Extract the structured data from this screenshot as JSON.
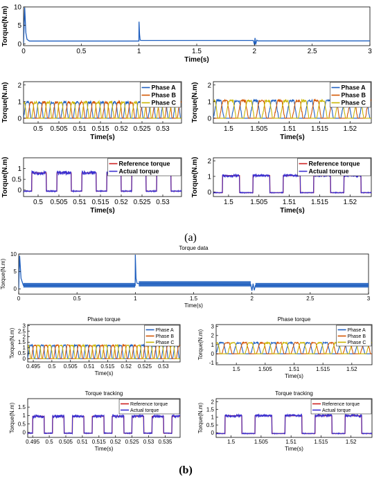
{
  "panel_labels": {
    "a": "(a)",
    "b": "(b)"
  },
  "chart_data": [
    {
      "id": "a_torque",
      "type": "line",
      "title": "",
      "xlabel": "Time(s)",
      "ylabel": "Torque(N.m)",
      "xlim": [
        0,
        3
      ],
      "ylim": [
        -0.5,
        10
      ],
      "xticks": [
        0,
        0.5,
        1,
        1.5,
        2,
        2.5,
        3
      ],
      "xtick_labels": [
        "0",
        "0.5",
        "1",
        "1.5",
        "2",
        "2.5",
        "3"
      ],
      "yticks": [
        0,
        5,
        10
      ],
      "ytick_labels": [
        "0",
        "5",
        "10"
      ],
      "grid": false,
      "series": [
        {
          "color": "#1f5fbf",
          "x": [
            0,
            0.01,
            0.02,
            0.03,
            0.05,
            0.999,
            1.0,
            1.005,
            1.01,
            1.02,
            1.05,
            1.99,
            2.0,
            2.005,
            2.01,
            2.02,
            2.03,
            3.0
          ],
          "y": [
            0,
            9.8,
            3.0,
            1.2,
            0.75,
            0.75,
            6.0,
            2.5,
            1.0,
            0.9,
            0.9,
            0.9,
            -0.2,
            1.6,
            -0.2,
            1.0,
            0.8,
            0.8
          ]
        }
      ]
    },
    {
      "id": "a_phase_left",
      "type": "line",
      "xlabel": "Time(s)",
      "ylabel": "Torque(N.m)",
      "xlim": [
        0.4965,
        0.5345
      ],
      "ylim": [
        -0.3,
        2.2
      ],
      "xticks": [
        0.5,
        0.505,
        0.51,
        0.515,
        0.52,
        0.525,
        0.53
      ],
      "xtick_labels": [
        "0.5",
        "0.505",
        "0.51",
        "0.515",
        "0.52",
        "0.525",
        "0.53"
      ],
      "yticks": [
        0,
        1,
        2
      ],
      "ytick_labels": [
        "0",
        "1",
        "2"
      ],
      "grid": false,
      "legend": "top-right",
      "wave": {
        "start": 0.4965,
        "end": 0.5345,
        "period": 0.003,
        "high": 0.95,
        "low": 0.0,
        "rise": 0.18,
        "flat": 0.25,
        "fall": 0.15
      },
      "series": [
        {
          "name": "Phase A",
          "color": "#1f5fbf",
          "phase": 0.0
        },
        {
          "name": "Phase B",
          "color": "#d35400",
          "phase": 0.001
        },
        {
          "name": "Phase C",
          "color": "#c9b400",
          "phase": 0.002
        }
      ]
    },
    {
      "id": "a_phase_right",
      "type": "line",
      "xlabel": "Time(s)",
      "ylabel": "Torque(N.m)",
      "xlim": [
        1.4975,
        1.5235
      ],
      "ylim": [
        -0.3,
        2.2
      ],
      "xticks": [
        1.5,
        1.505,
        1.51,
        1.515,
        1.52
      ],
      "xtick_labels": [
        "1.5",
        "1.505",
        "1.51",
        "1.515",
        "1.52"
      ],
      "yticks": [
        0,
        1,
        2
      ],
      "ytick_labels": [
        "0",
        "1",
        "2"
      ],
      "grid": false,
      "legend": "top-right",
      "wave": {
        "start": 1.4975,
        "end": 1.5235,
        "period": 0.003,
        "high": 1.05,
        "low": 0.0,
        "rise": 0.18,
        "flat": 0.25,
        "fall": 0.15
      },
      "series": [
        {
          "name": "Phase A",
          "color": "#1f5fbf",
          "phase": 0.0
        },
        {
          "name": "Phase B",
          "color": "#d35400",
          "phase": 0.001
        },
        {
          "name": "Phase C",
          "color": "#c9b400",
          "phase": 0.002
        }
      ]
    },
    {
      "id": "a_track_left",
      "type": "line",
      "xlabel": "Time(s)",
      "ylabel": "Torque(N.m)",
      "xlim": [
        0.4965,
        0.5345
      ],
      "ylim": [
        -0.3,
        1.5
      ],
      "xticks": [
        0.5,
        0.505,
        0.51,
        0.515,
        0.52,
        0.525,
        0.53
      ],
      "xtick_labels": [
        "0.5",
        "0.505",
        "0.51",
        "0.515",
        "0.52",
        "0.525",
        "0.53"
      ],
      "yticks": [
        0,
        0.5,
        1
      ],
      "ytick_labels": [
        "0",
        "0.5",
        "1"
      ],
      "grid": false,
      "legend": "top-right",
      "pulse": {
        "start": 0.4965,
        "end": 0.5345,
        "period": 0.006,
        "offset": 0.002,
        "width": 0.0035,
        "high": 0.8,
        "low": -0.05
      },
      "series": [
        {
          "name": "Reference torque",
          "color": "#cc1f1f"
        },
        {
          "name": "Actual torque",
          "color": "#3a2fd0"
        }
      ]
    },
    {
      "id": "a_track_right",
      "type": "line",
      "xlabel": "Time(s)",
      "ylabel": "Torque(N.m)",
      "xlim": [
        1.4975,
        1.5235
      ],
      "ylim": [
        -0.3,
        2.2
      ],
      "xticks": [
        1.5,
        1.505,
        1.51,
        1.515,
        1.52
      ],
      "xtick_labels": [
        "1.5",
        "1.505",
        "1.51",
        "1.515",
        "1.52"
      ],
      "yticks": [
        0,
        1,
        2
      ],
      "ytick_labels": [
        "0",
        "1",
        "2"
      ],
      "grid": false,
      "legend": "top-right",
      "pulse": {
        "start": 1.4975,
        "end": 1.5235,
        "period": 0.005,
        "offset": 0.0015,
        "width": 0.0028,
        "high": 1.05,
        "low": -0.05
      },
      "series": [
        {
          "name": "Reference torque",
          "color": "#cc1f1f"
        },
        {
          "name": "Actual torque",
          "color": "#3a2fd0"
        }
      ]
    },
    {
      "id": "b_torque",
      "type": "line",
      "title": "Torque data",
      "xlabel": "Time(s)",
      "ylabel": "Torque(N.m)",
      "xlim": [
        0,
        3
      ],
      "ylim": [
        -1.5,
        10
      ],
      "xticks": [
        0,
        0.5,
        1,
        1.5,
        2,
        2.5,
        3
      ],
      "xtick_labels": [
        "0",
        "0.5",
        "1",
        "1.5",
        "2",
        "2.5",
        "3"
      ],
      "yticks": [
        0,
        5,
        10
      ],
      "ytick_labels": [
        "0",
        "5",
        "10"
      ],
      "grid": false,
      "series": [
        {
          "color": "#1f5fbf",
          "x": [
            0,
            0.008,
            0.02,
            0.04,
            0.999,
            1.0,
            1.006,
            1.015,
            1.03,
            1.99,
            2.0,
            2.01,
            2.02,
            2.03,
            3.0
          ],
          "y": [
            0,
            9.5,
            3.0,
            1.0,
            1.0,
            9.8,
            3.0,
            1.6,
            1.5,
            1.3,
            -0.5,
            1.5,
            -0.4,
            1.0,
            1.0
          ]
        }
      ],
      "band": [
        {
          "x": [
            0.04,
            0.999
          ],
          "y_low": 0.4,
          "y_high": 1.7
        },
        {
          "x": [
            1.03,
            1.99
          ],
          "y_low": 0.7,
          "y_high": 2.2
        },
        {
          "x": [
            2.03,
            3.0
          ],
          "y_low": 0.4,
          "y_high": 1.7
        }
      ]
    },
    {
      "id": "b_phase_left",
      "type": "line",
      "title": "Phase torque",
      "xlabel": "Time(s)",
      "ylabel": "Torque(N.m)",
      "xlim": [
        0.4935,
        0.5345
      ],
      "ylim": [
        -0.3,
        3.1
      ],
      "xticks": [
        0.495,
        0.5,
        0.505,
        0.51,
        0.515,
        0.52,
        0.525,
        0.53
      ],
      "xtick_labels": [
        "0.495",
        "0.5",
        "0.505",
        "0.51",
        "0.515",
        "0.52",
        "0.525",
        "0.53"
      ],
      "yticks": [
        0,
        0.5,
        1,
        1.5,
        2,
        2.5,
        3
      ],
      "ytick_labels": [
        "0",
        "0.5",
        "1",
        "1.5",
        "2",
        "2.5",
        "3"
      ],
      "grid": false,
      "legend": "top-right",
      "wave": {
        "start": 0.4935,
        "end": 0.5345,
        "period": 0.003,
        "high": 1.2,
        "low": 0.0,
        "rise": 0.18,
        "flat": 0.25,
        "fall": 0.15
      },
      "series": [
        {
          "name": "Phase A",
          "color": "#1f5fbf",
          "phase": 0.0
        },
        {
          "name": "Phase B",
          "color": "#d35400",
          "phase": 0.001
        },
        {
          "name": "Phase C",
          "color": "#c9b400",
          "phase": 0.002
        }
      ]
    },
    {
      "id": "b_phase_right",
      "type": "line",
      "title": "Phase torque",
      "xlabel": "Time(s)",
      "ylabel": "Torque(N.m)",
      "xlim": [
        1.4965,
        1.5235
      ],
      "ylim": [
        -1.2,
        3.2
      ],
      "xticks": [
        1.5,
        1.505,
        1.51,
        1.515,
        1.52
      ],
      "xtick_labels": [
        "1.5",
        "1.505",
        "1.51",
        "1.515",
        "1.52"
      ],
      "yticks": [
        -1,
        0,
        1,
        2,
        3
      ],
      "ytick_labels": [
        "-1",
        "0",
        "1",
        "2",
        "3"
      ],
      "grid": false,
      "legend": "top-right",
      "wave": {
        "start": 1.4965,
        "end": 1.5235,
        "period": 0.003,
        "high": 1.2,
        "low": 0.0,
        "rise": 0.18,
        "flat": 0.25,
        "fall": 0.15
      },
      "series": [
        {
          "name": "Phase A",
          "color": "#1f5fbf",
          "phase": 0.0
        },
        {
          "name": "Phase B",
          "color": "#d35400",
          "phase": 0.001
        },
        {
          "name": "Phase C",
          "color": "#c9b400",
          "phase": 0.002
        }
      ]
    },
    {
      "id": "b_track_left",
      "type": "line",
      "title": "Torque tracking",
      "xlabel": "Time(s)",
      "ylabel": "Torque(N.m)",
      "xlim": [
        0.4935,
        0.5395
      ],
      "ylim": [
        -0.3,
        2.0
      ],
      "xticks": [
        0.495,
        0.5,
        0.505,
        0.51,
        0.515,
        0.52,
        0.525,
        0.53,
        0.535
      ],
      "xtick_labels": [
        "0.495",
        "0.5",
        "0.505",
        "0.51",
        "0.515",
        "0.52",
        "0.525",
        "0.53",
        "0.535"
      ],
      "yticks": [
        0,
        0.5,
        1,
        1.5
      ],
      "ytick_labels": [
        "0",
        "0.5",
        "1",
        "1.5"
      ],
      "grid": false,
      "legend": "top-right",
      "pulse": {
        "start": 0.4935,
        "end": 0.5395,
        "period": 0.006,
        "offset": 0.0015,
        "width": 0.0035,
        "high": 0.95,
        "low": -0.05
      },
      "series": [
        {
          "name": "Reference torque",
          "color": "#cc1f1f"
        },
        {
          "name": "Actual torque",
          "color": "#3a2fd0"
        }
      ]
    },
    {
      "id": "b_track_right",
      "type": "line",
      "title": "Torque tracking",
      "xlabel": "Time(s)",
      "ylabel": "Torque(N.m)",
      "xlim": [
        1.4975,
        1.5235
      ],
      "ylim": [
        -0.3,
        2.2
      ],
      "xticks": [
        1.5,
        1.505,
        1.51,
        1.515,
        1.52
      ],
      "xtick_labels": [
        "1.5",
        "1.505",
        "1.51",
        "1.515",
        "1.52"
      ],
      "yticks": [
        0,
        0.5,
        1,
        1.5,
        2
      ],
      "ytick_labels": [
        "0",
        "0.5",
        "1",
        "1.5",
        "2"
      ],
      "grid": false,
      "legend": "top-right",
      "pulse": {
        "start": 1.4975,
        "end": 1.5235,
        "period": 0.005,
        "offset": 0.0015,
        "width": 0.0028,
        "high": 1.1,
        "low": -0.05
      },
      "series": [
        {
          "name": "Reference torque",
          "color": "#cc1f1f"
        },
        {
          "name": "Actual torque",
          "color": "#3a2fd0"
        }
      ]
    }
  ]
}
